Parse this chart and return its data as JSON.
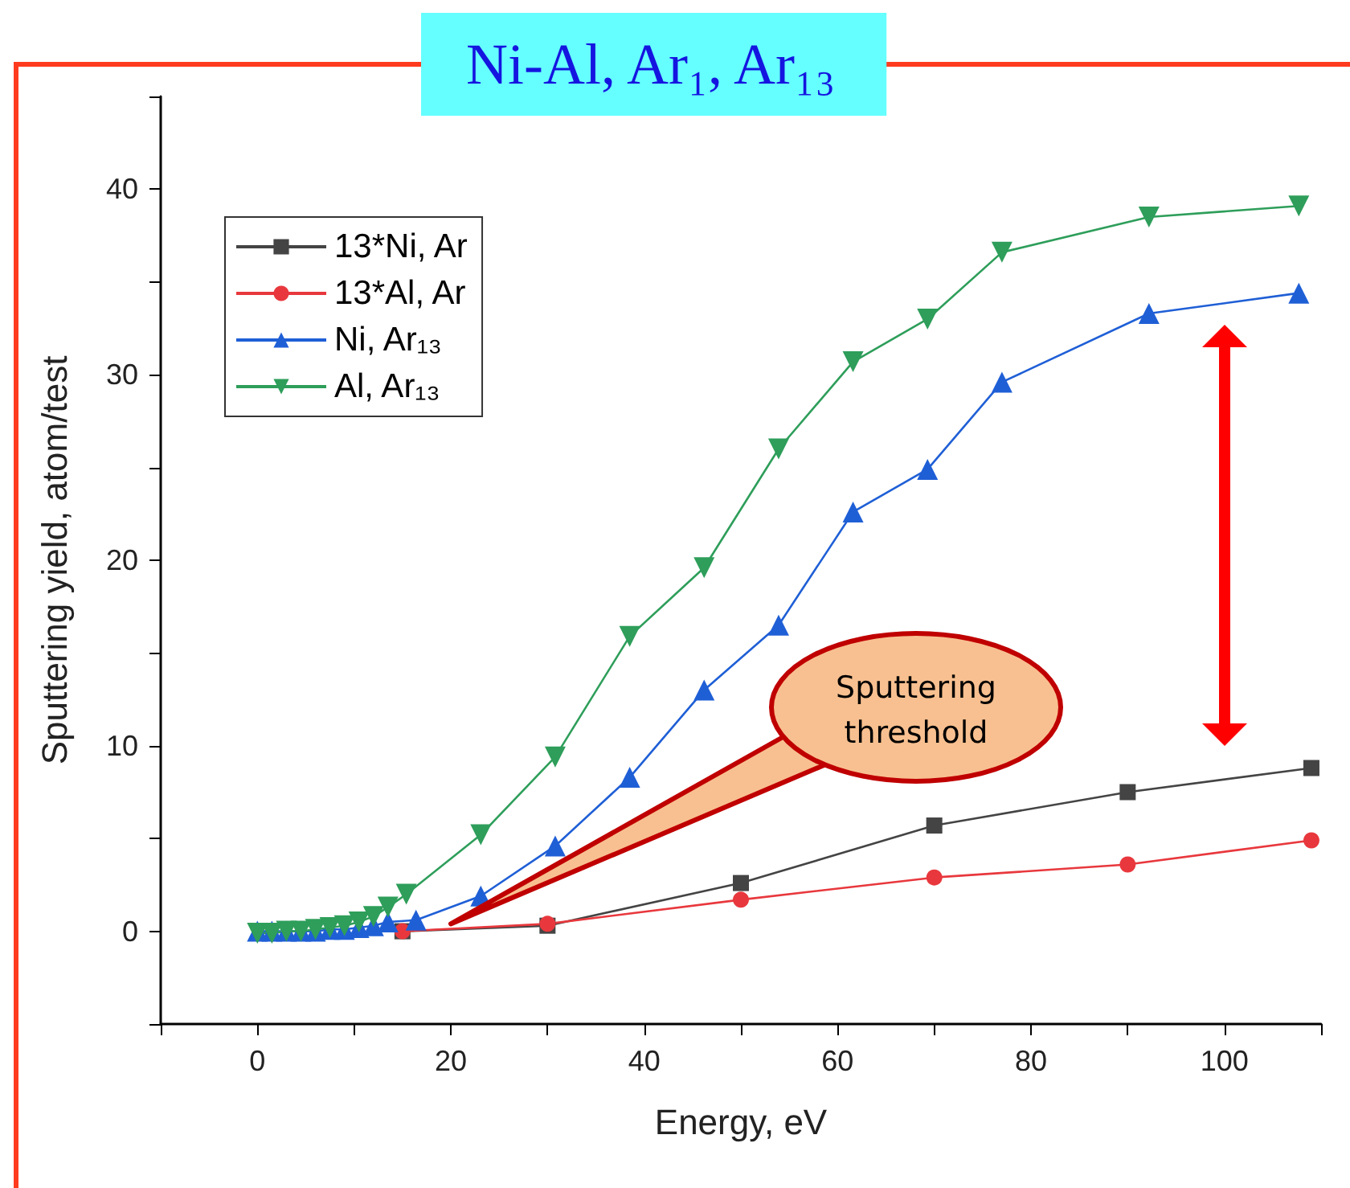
{
  "chart_data": {
    "type": "line",
    "title": "Ni-Al, Ar₁, Ar₁₃",
    "xlabel": "Energy, eV",
    "ylabel": "Sputtering yield, atom/test",
    "xlim": [
      -10,
      110
    ],
    "xticks": [
      0,
      20,
      40,
      60,
      80,
      100
    ],
    "ylim": [
      -5,
      45
    ],
    "yticks": [
      0,
      10,
      20,
      30,
      40
    ],
    "grid": false,
    "legend": "top left",
    "annotations": [
      {
        "text": "Sputtering threshold",
        "x": 20,
        "y": 0.4
      }
    ],
    "series": [
      {
        "name": "13*Ni, Ar",
        "color": "#444444",
        "marker": "square",
        "x": [
          15,
          30,
          50,
          70,
          90,
          109
        ],
        "values": [
          0,
          0.3,
          2.6,
          5.7,
          7.5,
          8.8
        ]
      },
      {
        "name": "13*Al, Ar",
        "color": "#e8383d",
        "marker": "circle",
        "x": [
          15,
          30,
          50,
          70,
          90,
          109
        ],
        "values": [
          0,
          0.4,
          1.7,
          2.9,
          3.6,
          4.9
        ]
      },
      {
        "name": "Ni, Ar₁₃",
        "color": "#1f5fd6",
        "marker": "triangle",
        "x": [
          0,
          1.5,
          3,
          4.5,
          6,
          7.5,
          9,
          10.5,
          12,
          13.5,
          16.4,
          23.1,
          30.8,
          38.5,
          46.2,
          53.9,
          61.6,
          69.3,
          77,
          92.2,
          107.7
        ],
        "values": [
          0,
          0,
          0,
          0,
          0,
          0.1,
          0.1,
          0.2,
          0.3,
          0.5,
          0.6,
          1.9,
          4.6,
          8.3,
          13,
          16.5,
          22.6,
          24.9,
          29.6,
          33.3,
          34.4
        ]
      },
      {
        "name": "Al, Ar₁₃",
        "color": "#2e9e5a",
        "marker": "triangle_down",
        "x": [
          0,
          1.5,
          3,
          4.5,
          6,
          7.5,
          9,
          10.5,
          12,
          13.5,
          15.4,
          23.1,
          30.8,
          38.5,
          46.2,
          53.9,
          61.6,
          69.3,
          77,
          92.2,
          107.7
        ],
        "values": [
          -0.1,
          -0.1,
          0,
          0,
          0.1,
          0.2,
          0.3,
          0.5,
          0.8,
          1.3,
          2,
          5.2,
          9.4,
          15.9,
          19.6,
          26,
          30.7,
          33,
          36.6,
          38.5,
          39.1
        ]
      }
    ]
  }
}
